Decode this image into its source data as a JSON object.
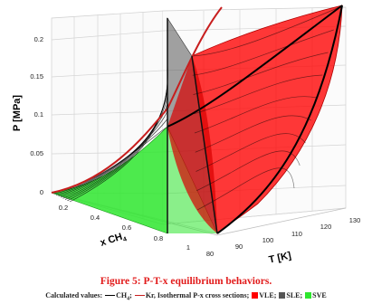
{
  "chart_data": {
    "type": "surface-3d",
    "title": "",
    "axes": {
      "z": {
        "label": "P [MPa]",
        "ticks": [
          "0",
          "0.05",
          "0.1",
          "0.15",
          "0.2"
        ],
        "range": [
          0,
          0.22
        ]
      },
      "x": {
        "label": "x CH",
        "label_sub": "4",
        "ticks": [
          "0.2",
          "0.4",
          "0.6",
          "0.8",
          "1"
        ],
        "range": [
          0,
          1
        ]
      },
      "y": {
        "label": "T [K]",
        "ticks": [
          "80",
          "90",
          "100",
          "110",
          "120",
          "130"
        ],
        "range": [
          80,
          130
        ]
      }
    },
    "grid": true,
    "regions": [
      {
        "name": "VLE",
        "color": "#ff0000"
      },
      {
        "name": "SLE",
        "color": "#555555"
      },
      {
        "name": "SVE",
        "color": "#2ee62e"
      }
    ]
  },
  "caption": {
    "figure": "Figure 5: P-T-x equilibrium behaviors.",
    "legend_prefix": "Calculated values:",
    "legend_ch4": "CH",
    "legend_ch4_sub": "4",
    "legend_kr": "Kr,",
    "legend_iso": "Isothermal P-x cross sections;",
    "legend_vle": "VLE;",
    "legend_sle": "SLE;",
    "legend_sve": "SVE"
  },
  "colors": {
    "vle": "#ff0000",
    "sle": "#555555",
    "sve": "#2ee62e",
    "line": "#000000",
    "curve": "#c81e1e"
  }
}
